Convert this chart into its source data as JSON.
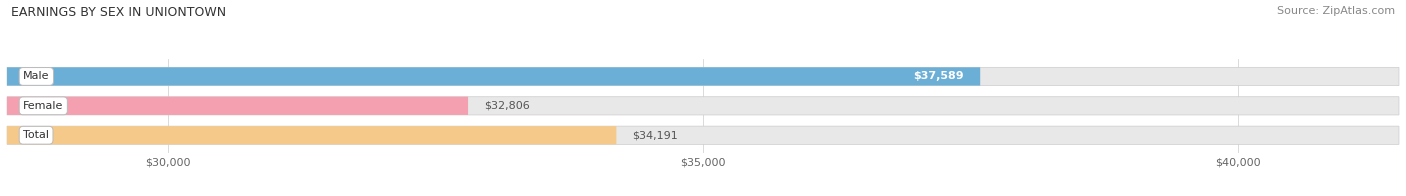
{
  "title": "EARNINGS BY SEX IN UNIONTOWN",
  "source": "Source: ZipAtlas.com",
  "categories": [
    "Male",
    "Female",
    "Total"
  ],
  "values": [
    37589,
    32806,
    34191
  ],
  "bar_colors": [
    "#6baed6",
    "#f4a0b0",
    "#f5c98a"
  ],
  "bar_background_color": "#e8e8e8",
  "xmin": 28500,
  "xmax": 41500,
  "xticks": [
    30000,
    35000,
    40000
  ],
  "xtick_labels": [
    "$30,000",
    "$35,000",
    "$40,000"
  ],
  "value_labels": [
    "$37,589",
    "$32,806",
    "$34,191"
  ],
  "title_fontsize": 9,
  "source_fontsize": 8,
  "tick_fontsize": 8,
  "bar_label_fontsize": 8,
  "cat_label_fontsize": 8,
  "background_color": "#ffffff",
  "grid_color": "#cccccc"
}
